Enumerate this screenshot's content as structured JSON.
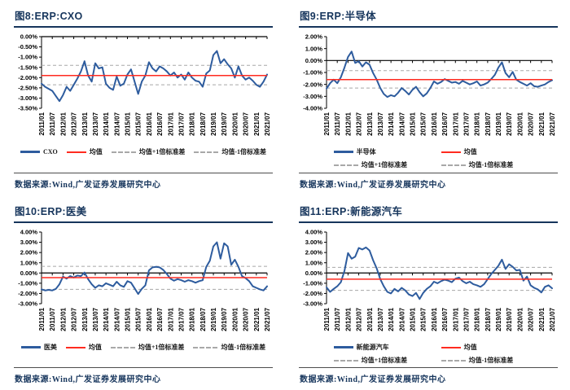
{
  "colors": {
    "series_blue": "#2E5C9E",
    "mean_red": "#FF2B20",
    "std_gray": "#A8A8A8",
    "title_navy": "#16355C",
    "axis_black": "#000000"
  },
  "chart_data": [
    {
      "id": "fig8",
      "type": "line",
      "fig_title": "图8:ERP:CXO",
      "xlabel": "",
      "ylabel": "",
      "x_start": "2011/01",
      "x_step_months": 2,
      "x_ticks": [
        "2011/01",
        "2011/07",
        "2012/01",
        "2012/07",
        "2013/01",
        "2013/07",
        "2014/01",
        "2014/07",
        "2015/01",
        "2015/07",
        "2016/01",
        "2016/07",
        "2017/01",
        "2017/07",
        "2018/01",
        "2018/07",
        "2019/01",
        "2019/07",
        "2020/01",
        "2020/07",
        "2021/01",
        "2021/07"
      ],
      "ylim": [
        -3.5,
        0
      ],
      "ytick_step": 0.5,
      "series": {
        "name": "CXO",
        "values": [
          -2.3,
          -2.45,
          -2.55,
          -2.65,
          -2.9,
          -3.15,
          -2.85,
          -2.45,
          -2.65,
          -2.35,
          -2.05,
          -1.7,
          -1.2,
          -1.9,
          -2.2,
          -1.3,
          -1.55,
          -1.5,
          -2.3,
          -2.5,
          -2.6,
          -1.95,
          -2.4,
          -2.3,
          -1.85,
          -1.6,
          -2.2,
          -2.8,
          -2.2,
          -1.9,
          -1.25,
          -1.55,
          -1.7,
          -1.45,
          -1.55,
          -1.7,
          -1.9,
          -1.75,
          -2.0,
          -1.85,
          -2.1,
          -1.75,
          -2.0,
          -2.15,
          -2.2,
          -2.45,
          -1.8,
          -1.65,
          -0.9,
          -0.7,
          -1.3,
          -1.1,
          -1.35,
          -1.55,
          -2.0,
          -1.45,
          -1.9,
          -2.1,
          -2.0,
          -2.15,
          -2.35,
          -2.45,
          -2.2,
          -1.85
        ]
      },
      "mean": -1.9,
      "std_upper": -1.4,
      "std_lower": -2.35,
      "legend_layout": "row",
      "legend": [
        {
          "swatch": "blue",
          "label": "CXO"
        },
        {
          "swatch": "red",
          "label": "均值"
        },
        {
          "swatch": "dash",
          "label": "均值+1倍标准差"
        },
        {
          "swatch": "dash",
          "label": "均值-1倍标准差"
        }
      ],
      "source": "数据来源:Wind,广发证券发展研究中心"
    },
    {
      "id": "fig9",
      "type": "line",
      "fig_title": "图9:ERP:半导体",
      "xlabel": "",
      "ylabel": "",
      "x_start": "2011/01",
      "x_step_months": 2,
      "x_ticks": [
        "2011/01",
        "2011/07",
        "2012/01",
        "2012/07",
        "2013/01",
        "2013/07",
        "2014/01",
        "2014/07",
        "2015/01",
        "2015/07",
        "2016/01",
        "2016/07",
        "2017/01",
        "2017/07",
        "2018/01",
        "2018/07",
        "2019/01",
        "2019/07",
        "2020/01",
        "2020/07",
        "2021/01",
        "2021/07"
      ],
      "ylim": [
        -4,
        2
      ],
      "ytick_step": 1,
      "series": {
        "name": "半导体",
        "values": [
          -2.35,
          -1.9,
          -1.6,
          -1.9,
          -1.4,
          -0.6,
          0.3,
          0.75,
          -0.2,
          -0.05,
          -0.5,
          -0.15,
          -0.35,
          -1.05,
          -1.6,
          -2.3,
          -2.8,
          -3.05,
          -2.9,
          -3.0,
          -2.7,
          -2.3,
          -2.55,
          -2.85,
          -2.45,
          -2.2,
          -2.65,
          -3.0,
          -2.75,
          -2.3,
          -1.75,
          -1.95,
          -1.8,
          -1.55,
          -1.7,
          -1.85,
          -1.8,
          -1.95,
          -1.7,
          -1.85,
          -2.0,
          -1.9,
          -1.75,
          -2.1,
          -2.0,
          -1.85,
          -1.55,
          -1.2,
          -0.6,
          -0.15,
          -1.05,
          -1.4,
          -0.95,
          -1.6,
          -1.8,
          -1.95,
          -2.1,
          -1.9,
          -2.15,
          -2.2,
          -2.1,
          -2.0,
          -1.8,
          -1.65
        ]
      },
      "mean": -1.6,
      "std_upper": -0.85,
      "std_lower": -2.3,
      "legend_layout": "grid",
      "legend": [
        {
          "swatch": "blue",
          "label": "半导体"
        },
        {
          "swatch": "red",
          "label": "均值"
        },
        {
          "swatch": "dash",
          "label": "均值+1倍标准差"
        },
        {
          "swatch": "dash",
          "label": "均值-1倍标准差"
        }
      ],
      "source": "数据来源:Wind,广发证券发展研究中心"
    },
    {
      "id": "fig10",
      "type": "line",
      "fig_title": "图10:ERP:医美",
      "xlabel": "",
      "ylabel": "",
      "x_start": "2011/01",
      "x_step_months": 2,
      "x_ticks": [
        "2011/01",
        "2011/07",
        "2012/01",
        "2012/07",
        "2013/01",
        "2013/07",
        "2014/01",
        "2014/07",
        "2015/01",
        "2015/07",
        "2016/01",
        "2016/07",
        "2017/01",
        "2017/07",
        "2018/01",
        "2018/07",
        "2019/01",
        "2019/07",
        "2020/01",
        "2020/07",
        "2021/01",
        "2021/07"
      ],
      "ylim": [
        -3,
        4
      ],
      "ytick_step": 1,
      "series": {
        "name": "医美",
        "values": [
          -1.6,
          -1.7,
          -1.65,
          -1.7,
          -1.55,
          -1.1,
          -0.35,
          -0.55,
          -0.3,
          -0.45,
          -0.25,
          -0.3,
          0.05,
          -0.6,
          -1.1,
          -1.45,
          -1.2,
          -1.3,
          -1.0,
          -1.15,
          -1.3,
          -0.85,
          -1.2,
          -1.35,
          -0.8,
          -0.95,
          -1.5,
          -2.05,
          -1.55,
          -1.2,
          0.25,
          0.55,
          0.6,
          0.55,
          0.3,
          -0.1,
          -0.55,
          -0.75,
          -0.6,
          -0.7,
          -0.85,
          -0.7,
          -0.8,
          -0.95,
          -0.8,
          -0.7,
          0.6,
          1.2,
          2.6,
          3.0,
          1.4,
          2.9,
          2.6,
          0.8,
          1.3,
          0.6,
          -0.3,
          -0.5,
          -0.8,
          -1.3,
          -1.45,
          -1.6,
          -1.7,
          -1.3
        ]
      },
      "mean": -0.45,
      "std_upper": 0.65,
      "std_lower": -1.6,
      "legend_layout": "row",
      "legend": [
        {
          "swatch": "blue",
          "label": "医美"
        },
        {
          "swatch": "red",
          "label": "均值"
        },
        {
          "swatch": "dash",
          "label": "均值+1倍标准差"
        },
        {
          "swatch": "dash",
          "label": "均值-1倍标准差"
        }
      ],
      "source": "数据来源:Wind,广发证券发展研究中心"
    },
    {
      "id": "fig11",
      "type": "line",
      "fig_title": "图11:ERP:新能源汽车",
      "xlabel": "",
      "ylabel": "",
      "x_start": "2011/01",
      "x_step_months": 2,
      "x_ticks": [
        "2011/01",
        "2011/07",
        "2012/01",
        "2012/07",
        "2013/01",
        "2013/07",
        "2014/01",
        "2014/07",
        "2015/01",
        "2015/07",
        "2016/01",
        "2016/07",
        "2017/01",
        "2017/07",
        "2018/01",
        "2018/07",
        "2019/01",
        "2019/07",
        "2020/01",
        "2020/07",
        "2021/01",
        "2021/07"
      ],
      "ylim": [
        -3,
        4
      ],
      "ytick_step": 1,
      "series": {
        "name": "新能源汽车",
        "values": [
          -1.4,
          -1.85,
          -1.55,
          -1.3,
          -0.9,
          0.2,
          1.95,
          1.4,
          1.6,
          2.45,
          2.3,
          2.5,
          2.2,
          1.25,
          0.45,
          -0.6,
          -1.3,
          -1.85,
          -2.0,
          -1.55,
          -1.8,
          -1.45,
          -1.7,
          -2.1,
          -2.25,
          -1.95,
          -2.55,
          -1.95,
          -1.55,
          -1.3,
          -0.85,
          -1.0,
          -0.8,
          -0.65,
          -0.75,
          -0.9,
          -0.55,
          -0.45,
          -0.8,
          -1.0,
          -0.85,
          -1.1,
          -1.2,
          -1.35,
          -1.1,
          -0.6,
          -0.1,
          0.3,
          0.7,
          1.3,
          0.4,
          0.85,
          0.6,
          0.25,
          0.3,
          -0.75,
          -0.35,
          -1.2,
          -1.45,
          -1.6,
          -1.9,
          -1.35,
          -1.2,
          -1.5
        ]
      },
      "mean": -0.6,
      "std_upper": 0.55,
      "std_lower": -1.7,
      "legend_layout": "grid",
      "legend": [
        {
          "swatch": "blue",
          "label": "新能源汽车"
        },
        {
          "swatch": "red",
          "label": "均值"
        },
        {
          "swatch": "dash",
          "label": "均值+1倍标准差"
        },
        {
          "swatch": "dash",
          "label": "均值-1倍标准差"
        }
      ],
      "source": "数据来源:Wind,广发证券发展研究中心"
    }
  ]
}
